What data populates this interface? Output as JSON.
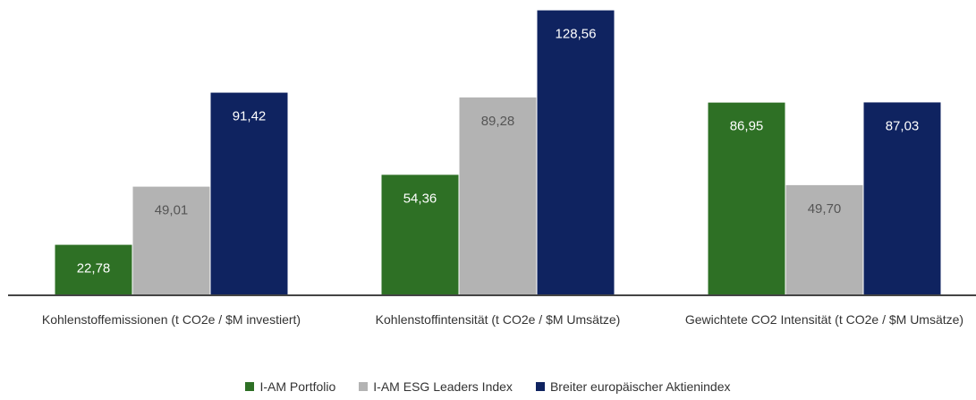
{
  "chart_data": {
    "type": "bar",
    "categories": [
      "Kohlenstoffemissionen (t CO2e / $M investiert)",
      "Kohlenstoffintensität (t CO2e / $M Umsätze)",
      "Gewichtete CO2 Intensität (t CO2e / $M Umsätze)"
    ],
    "series": [
      {
        "name": "I-AM Portfolio",
        "color": "#2e7025",
        "values": [
          22.78,
          54.36,
          86.95
        ],
        "value_labels": [
          "22,78",
          "54,36",
          "86,95"
        ]
      },
      {
        "name": "I-AM ESG Leaders Index",
        "color": "#b3b3b3",
        "values": [
          49.01,
          89.28,
          49.7
        ],
        "value_labels": [
          "49,01",
          "89,28",
          "49,70"
        ]
      },
      {
        "name": "Breiter europäischer Aktienindex",
        "color": "#0f2360",
        "values": [
          91.42,
          128.56,
          87.03
        ],
        "value_labels": [
          "91,42",
          "128,56",
          "87,03"
        ]
      }
    ],
    "ylim": [
      0,
      130
    ],
    "grid": false
  }
}
